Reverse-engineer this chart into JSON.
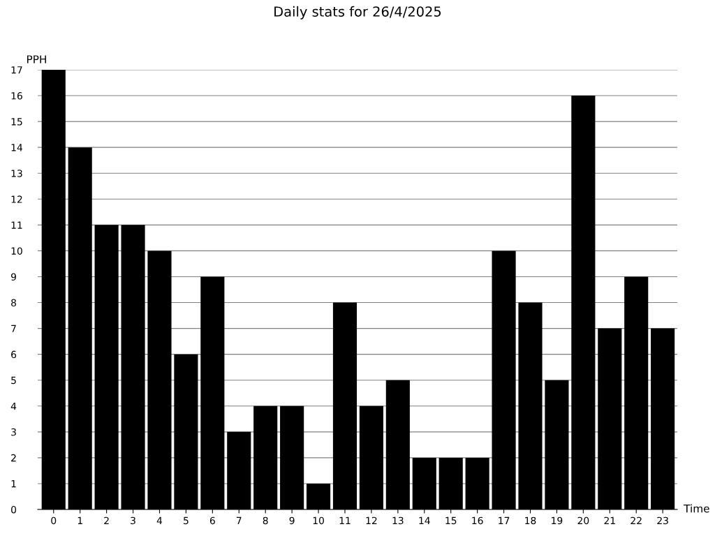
{
  "chart_data": {
    "type": "bar",
    "title": "Daily stats for 26/4/2025",
    "xlabel": "Time",
    "ylabel": "PPH",
    "categories": [
      "0",
      "1",
      "2",
      "3",
      "4",
      "5",
      "6",
      "7",
      "8",
      "9",
      "10",
      "11",
      "12",
      "13",
      "14",
      "15",
      "16",
      "17",
      "18",
      "19",
      "20",
      "21",
      "22",
      "23"
    ],
    "values": [
      17,
      14,
      11,
      11,
      10,
      6,
      9,
      3,
      4,
      4,
      1,
      8,
      4,
      5,
      2,
      2,
      2,
      10,
      8,
      5,
      16,
      7,
      9,
      7
    ],
    "color": "#000000",
    "ylim": [
      0,
      17
    ],
    "yticks": [
      0,
      1,
      2,
      3,
      4,
      5,
      6,
      7,
      8,
      9,
      10,
      11,
      12,
      13,
      14,
      15,
      16,
      17
    ],
    "grid": "y",
    "legend": false
  }
}
